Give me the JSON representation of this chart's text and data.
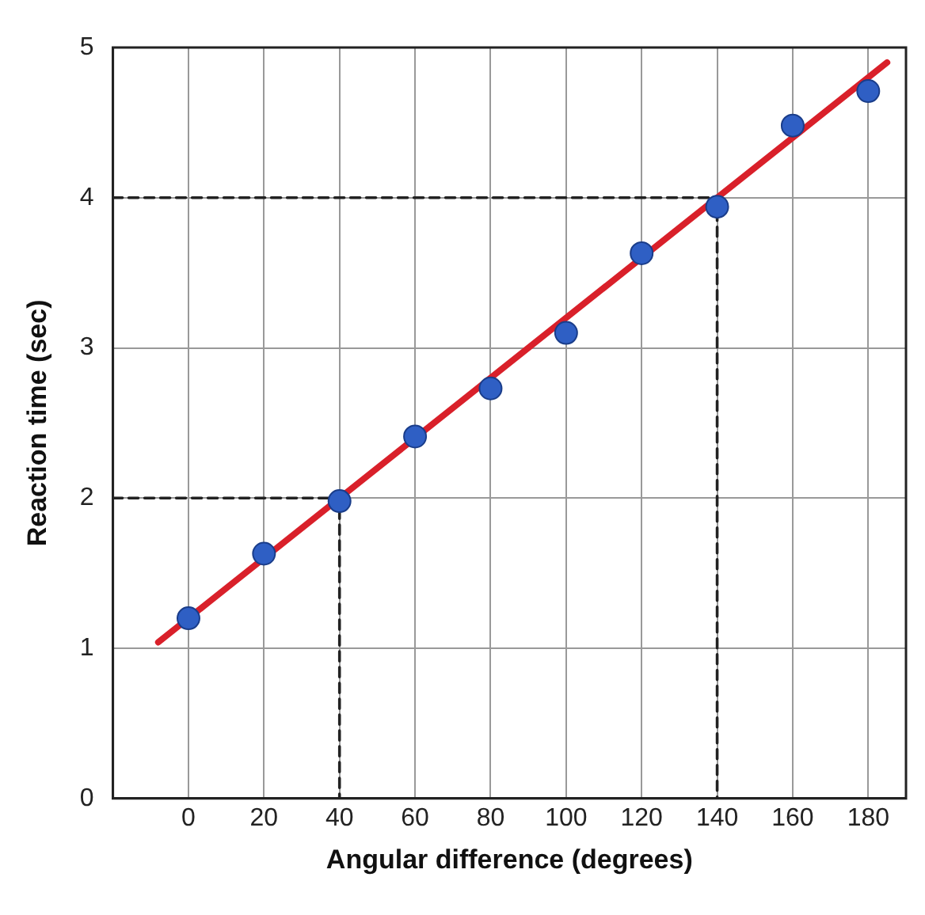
{
  "chart_data": {
    "type": "scatter",
    "xlabel": "Angular difference (degrees)",
    "ylabel": "Reaction time (sec)",
    "xlim": [
      -20,
      190
    ],
    "ylim": [
      0,
      5
    ],
    "xticks": [
      0,
      20,
      40,
      60,
      80,
      100,
      120,
      140,
      160,
      180
    ],
    "yticks": [
      0,
      1,
      2,
      3,
      4,
      5
    ],
    "grid": true,
    "legend": false,
    "series": [
      {
        "type": "line",
        "color": "#d9202a",
        "x": [
          -8,
          185
        ],
        "values": [
          1.04,
          4.9
        ],
        "line_style": "solid",
        "marker": "none"
      },
      {
        "type": "line",
        "color": "#222222",
        "x": [
          -20,
          40,
          40
        ],
        "values": [
          2,
          2,
          0
        ],
        "line_style": "dashed",
        "marker": "none"
      },
      {
        "type": "line",
        "color": "#222222",
        "x": [
          -20,
          140,
          140
        ],
        "values": [
          4,
          4,
          0
        ],
        "line_style": "dashed",
        "marker": "none"
      },
      {
        "type": "scatter",
        "color": "#2f5fc4",
        "x": [
          0,
          20,
          40,
          60,
          80,
          100,
          120,
          140,
          160,
          180
        ],
        "values": [
          1.2,
          1.63,
          1.98,
          2.41,
          2.73,
          3.1,
          3.63,
          3.94,
          4.48,
          4.71
        ],
        "marker": "circle"
      }
    ]
  }
}
